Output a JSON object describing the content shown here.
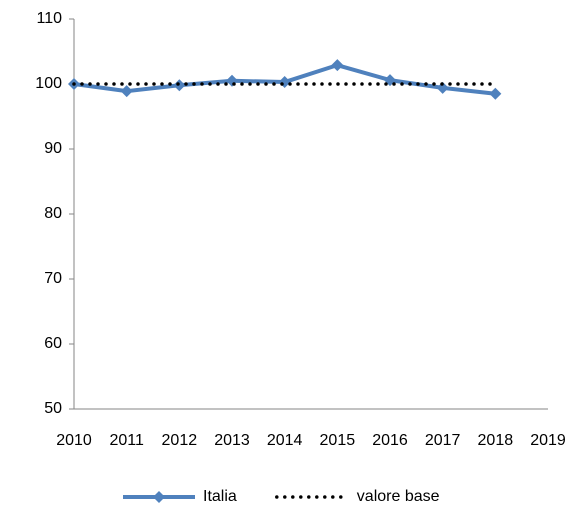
{
  "chart_data": {
    "type": "line",
    "categories": [
      "2010",
      "2011",
      "2012",
      "2013",
      "2014",
      "2015",
      "2016",
      "2017",
      "2018",
      "2019"
    ],
    "series": [
      {
        "name": "Italia",
        "color": "#4f81bd",
        "marker": "diamond",
        "dash": "solid",
        "values": [
          100,
          98.9,
          99.8,
          100.5,
          100.3,
          102.9,
          100.6,
          99.4,
          98.5,
          null
        ]
      },
      {
        "name": "valore base",
        "color": "#000000",
        "marker": "none",
        "dash": "dotted",
        "values": [
          100,
          100,
          100,
          100,
          100,
          100,
          100,
          100,
          100,
          null
        ]
      }
    ],
    "ylim": [
      50,
      110
    ],
    "yticks": [
      50,
      60,
      70,
      80,
      90,
      100,
      110
    ],
    "grid": false,
    "legend": "bottom"
  }
}
